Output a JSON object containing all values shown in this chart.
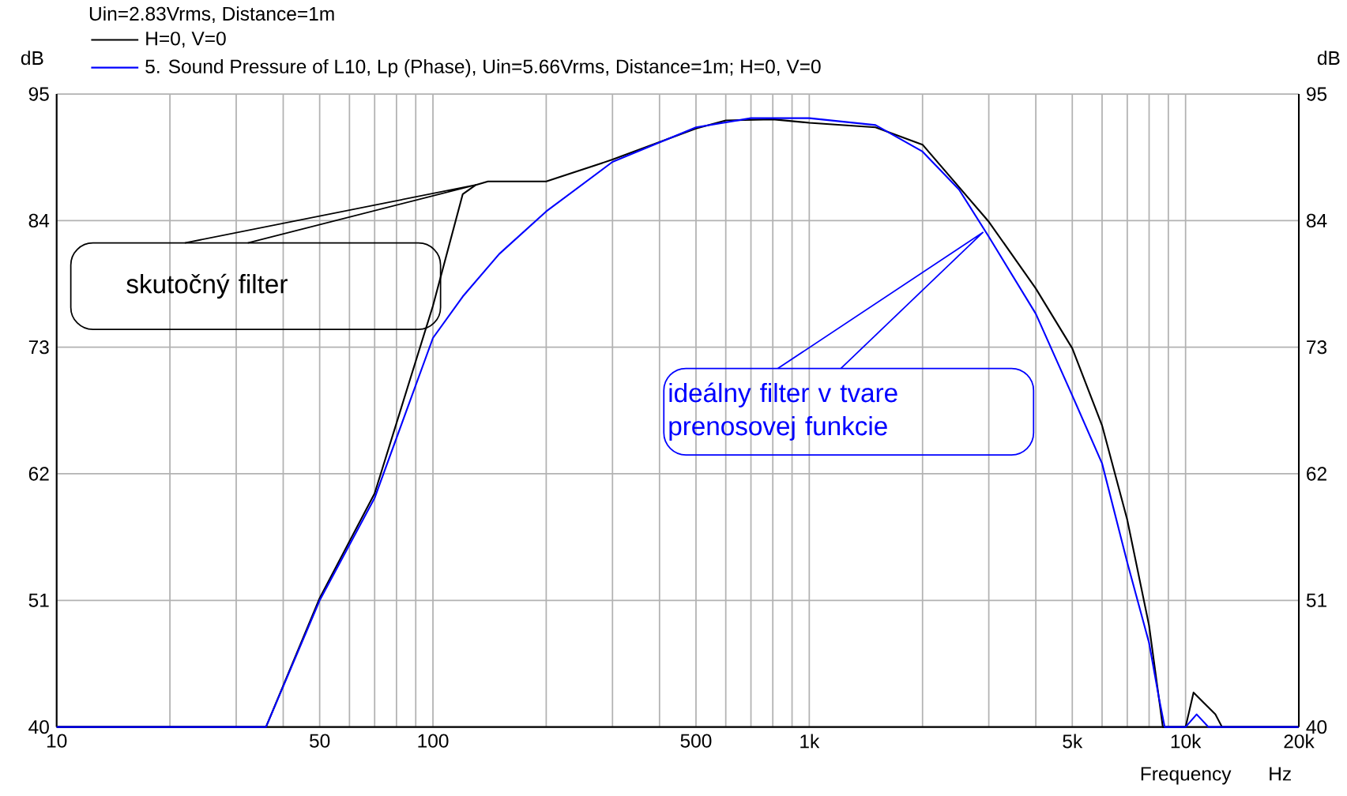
{
  "chart_data": {
    "type": "line",
    "title": "Uin=2.83Vrms, Distance=1m",
    "xlabel": "Frequency",
    "ylabel": "dB",
    "y2label": "dB",
    "log": "x",
    "grid": true,
    "legend": "top left",
    "line_style": "solid",
    "marker": "none",
    "xlim": [
      10,
      20000
    ],
    "ylim": [
      40,
      95
    ],
    "y2lim": [
      40,
      95
    ],
    "xticks": [
      10,
      {
        "value": 20,
        "label": null
      },
      {
        "value": 30,
        "label": null
      },
      {
        "value": 40,
        "label": null
      },
      50,
      {
        "value": 60,
        "label": null
      },
      {
        "value": 70,
        "label": null
      },
      {
        "value": 80,
        "label": null
      },
      {
        "value": 90,
        "label": null
      },
      100,
      {
        "value": 200,
        "label": null
      },
      {
        "value": 300,
        "label": null
      },
      {
        "value": 400,
        "label": null
      },
      500,
      {
        "value": 600,
        "label": null
      },
      {
        "value": 700,
        "label": null
      },
      {
        "value": 800,
        "label": null
      },
      {
        "value": 900,
        "label": null
      },
      {
        "value": 1000,
        "label": "1k"
      },
      {
        "value": 2000,
        "label": null
      },
      {
        "value": 3000,
        "label": null
      },
      {
        "value": 4000,
        "label": null
      },
      {
        "value": 5000,
        "label": "5k"
      },
      {
        "value": 6000,
        "label": null
      },
      {
        "value": 7000,
        "label": null
      },
      {
        "value": 8000,
        "label": null
      },
      {
        "value": 9000,
        "label": null
      },
      {
        "value": 10000,
        "label": "10k"
      },
      {
        "value": 20000,
        "label": "20k"
      }
    ],
    "yticks": [
      40,
      51,
      62,
      73,
      84,
      95
    ],
    "y2ticks": [
      40,
      51,
      62,
      73,
      84,
      95
    ],
    "series": [
      {
        "name": "H=0, V=0",
        "color": "#000000",
        "x": [
          10,
          36,
          50,
          70,
          100,
          120,
          130,
          140,
          200,
          300,
          500,
          600,
          800,
          1000,
          1500,
          2000,
          3000,
          4000,
          5000,
          6000,
          7000,
          8000,
          8700,
          10000,
          10500,
          12000,
          12500,
          20000
        ],
        "values": [
          40,
          40,
          51.2,
          60.3,
          76.6,
          86.3,
          87.1,
          87.4,
          87.4,
          89.3,
          92,
          92.7,
          92.8,
          92.5,
          92.1,
          90.6,
          83.9,
          78.1,
          72.9,
          66.2,
          58,
          48.8,
          40,
          40,
          43,
          41.1,
          40,
          40
        ]
      },
      {
        "name": "5. Sound Pressure of L10, Lp (Phase), Uin=5.66Vrms, Distance=1m; H=0, V=0",
        "color": "#0000ff",
        "x": [
          10,
          36,
          50,
          70,
          100,
          120,
          150,
          200,
          300,
          500,
          700,
          1000,
          1500,
          2000,
          2500,
          3000,
          4000,
          5000,
          6000,
          7000,
          8000,
          8500,
          8800,
          10000,
          10700,
          11500,
          20000
        ],
        "values": [
          40,
          40,
          51,
          59.9,
          73.8,
          77.4,
          81.1,
          84.8,
          89.1,
          92.1,
          92.9,
          92.9,
          92.3,
          90,
          86.7,
          82.6,
          75.9,
          68.8,
          62.9,
          54.3,
          47.3,
          42.5,
          40,
          40,
          41.1,
          40,
          40
        ]
      }
    ],
    "annotations": [
      "skutočný filter",
      "ideálny filter v tvare prenosovej funkcie",
      "Hz"
    ]
  }
}
